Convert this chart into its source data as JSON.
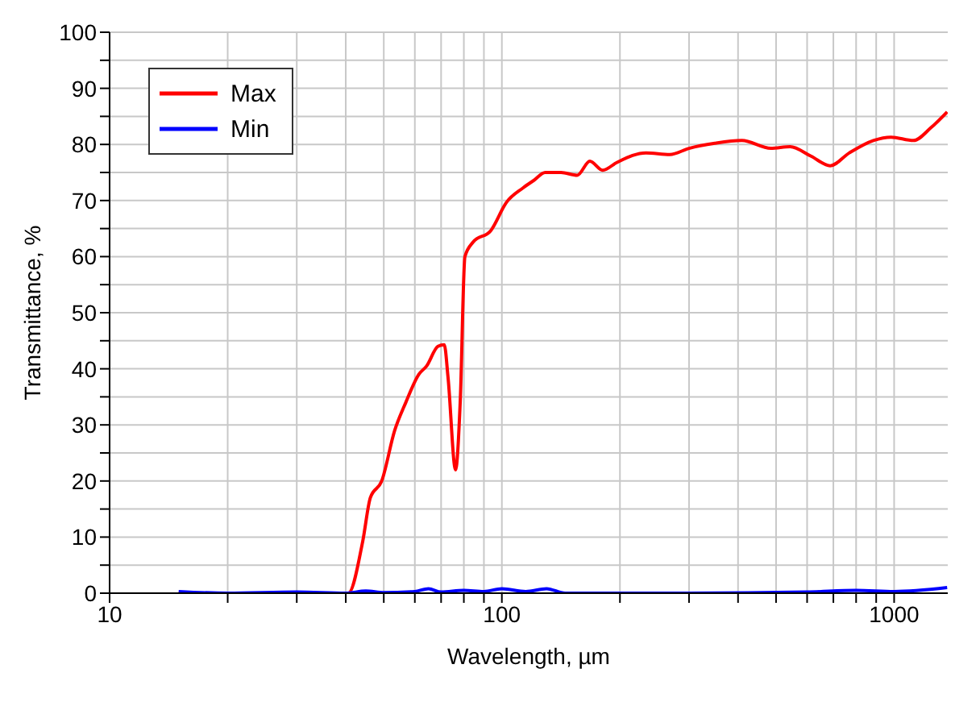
{
  "chart_data": {
    "type": "line",
    "xlabel": "Wavelength, µm",
    "ylabel": "Transmittance, %",
    "log": "x",
    "xlim": [
      10,
      1370
    ],
    "ylim": [
      0,
      100
    ],
    "xticks": [
      10,
      {
        "value": 20,
        "label": null
      },
      {
        "value": 30,
        "label": null
      },
      {
        "value": 40,
        "label": null
      },
      {
        "value": 50,
        "label": null
      },
      {
        "value": 60,
        "label": null
      },
      {
        "value": 70,
        "label": null
      },
      {
        "value": 80,
        "label": null
      },
      {
        "value": 90,
        "label": null
      },
      100,
      {
        "value": 200,
        "label": null
      },
      {
        "value": 300,
        "label": null
      },
      {
        "value": 400,
        "label": null
      },
      {
        "value": 500,
        "label": null
      },
      {
        "value": 600,
        "label": null
      },
      {
        "value": 700,
        "label": null
      },
      {
        "value": 800,
        "label": null
      },
      {
        "value": 900,
        "label": null
      },
      1000
    ],
    "yticks": [
      0,
      {
        "value": 5,
        "label": null
      },
      10,
      {
        "value": 15,
        "label": null
      },
      20,
      {
        "value": 25,
        "label": null
      },
      30,
      {
        "value": 35,
        "label": null
      },
      40,
      {
        "value": 45,
        "label": null
      },
      50,
      {
        "value": 55,
        "label": null
      },
      60,
      {
        "value": 65,
        "label": null
      },
      70,
      {
        "value": 75,
        "label": null
      },
      80,
      {
        "value": 85,
        "label": null
      },
      90,
      {
        "value": 95,
        "label": null
      },
      100
    ],
    "grid": true,
    "legend": "top left",
    "line_style": "solid",
    "marker": "none",
    "series": [
      {
        "name": "Max",
        "color": "#ff0000",
        "x": [
          15,
          30,
          40.6,
          44.2,
          46.2,
          49.4,
          53.3,
          56.9,
          61.4,
          64.3,
          68.7,
          71.3,
          72.9,
          76.2,
          78.3,
          80.5,
          84.5,
          93.6,
          102.8,
          113,
          120.7,
          129,
          141.5,
          155.6,
          167.6,
          180.7,
          196.6,
          233,
          268,
          300,
          349,
          409,
          485,
          543,
          614,
          687,
          769,
          885,
          982,
          1120,
          1242,
          1365
        ],
        "values": [
          0,
          0,
          0,
          9.3,
          17,
          20,
          29,
          34,
          39,
          40.5,
          44,
          44.3,
          38.5,
          22,
          34,
          60,
          62.6,
          64.6,
          69.7,
          72.2,
          73.6,
          75,
          75,
          74.5,
          77,
          75.4,
          76.8,
          78.5,
          78.2,
          79.3,
          80.2,
          80.7,
          79.3,
          79.6,
          77.9,
          76.2,
          78.5,
          80.7,
          81.3,
          80.7,
          83,
          85.8
        ]
      },
      {
        "name": "Min",
        "color": "#0000ff",
        "x": [
          15,
          20,
          30,
          40,
          45,
          50,
          60,
          65,
          70,
          80,
          90,
          100,
          115,
          130,
          145,
          300,
          600,
          800,
          1000,
          1365
        ],
        "values": [
          0.3,
          0,
          0.2,
          0,
          0.4,
          0.1,
          0.3,
          0.8,
          0.2,
          0.5,
          0.3,
          0.8,
          0.3,
          0.8,
          0,
          0,
          0.2,
          0.5,
          0.3,
          1
        ]
      }
    ]
  }
}
